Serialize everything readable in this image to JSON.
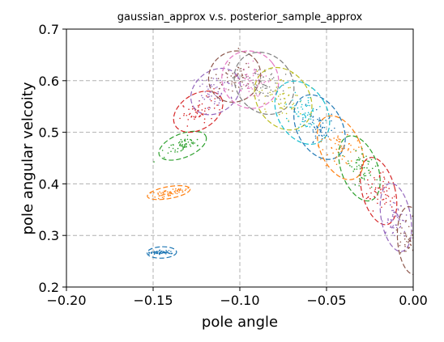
{
  "chart_data": {
    "type": "scatter",
    "title": "gaussian_approx v.s. posterior_sample_approx",
    "xlabel": "pole angle",
    "ylabel": "pole angular velcoity",
    "xlim": [
      -0.2,
      0.0
    ],
    "ylim": [
      0.2,
      0.7
    ],
    "xticks": [
      -0.2,
      -0.15,
      -0.1,
      -0.05,
      0.0
    ],
    "xtick_labels": [
      "−0.20",
      "−0.15",
      "−0.10",
      "−0.05",
      "0.00"
    ],
    "yticks": [
      0.2,
      0.3,
      0.4,
      0.5,
      0.6,
      0.7
    ],
    "ytick_labels": [
      "0.2",
      "0.3",
      "0.4",
      "0.5",
      "0.6",
      "0.7"
    ],
    "grid": true,
    "series": [
      {
        "color": "#1f77b4",
        "center": [
          -0.145,
          0.267
        ],
        "ellipse": {
          "rx": 0.0085,
          "ry": 0.011,
          "angle": -2
        },
        "spread": [
          0.004,
          0.002
        ]
      },
      {
        "color": "#ff7f0e",
        "center": [
          -0.141,
          0.383
        ],
        "ellipse": {
          "rx": 0.0125,
          "ry": 0.0115,
          "angle": -10
        },
        "spread": [
          0.006,
          0.004
        ]
      },
      {
        "color": "#2ca02c",
        "center": [
          -0.133,
          0.474
        ],
        "ellipse": {
          "rx": 0.0145,
          "ry": 0.023,
          "angle": -22
        },
        "spread": [
          0.006,
          0.008
        ]
      },
      {
        "color": "#d62728",
        "center": [
          -0.124,
          0.54
        ],
        "ellipse": {
          "rx": 0.0155,
          "ry": 0.034,
          "angle": -32
        },
        "spread": [
          0.006,
          0.012
        ]
      },
      {
        "color": "#9467bd",
        "center": [
          -0.114,
          0.579
        ],
        "ellipse": {
          "rx": 0.0155,
          "ry": 0.04,
          "angle": -38
        },
        "spread": [
          0.006,
          0.014
        ]
      },
      {
        "color": "#8c564b",
        "center": [
          -0.103,
          0.608
        ],
        "ellipse": {
          "rx": 0.0155,
          "ry": 0.048,
          "angle": -40
        },
        "spread": [
          0.006,
          0.016
        ]
      },
      {
        "color": "#e377c2",
        "center": [
          -0.094,
          0.602
        ],
        "ellipse": {
          "rx": 0.016,
          "ry": 0.057,
          "angle": -38
        },
        "spread": [
          0.006,
          0.018
        ]
      },
      {
        "color": "#7f7f7f",
        "center": [
          -0.086,
          0.595
        ],
        "ellipse": {
          "rx": 0.016,
          "ry": 0.064,
          "angle": -38
        },
        "spread": [
          0.006,
          0.02
        ]
      },
      {
        "color": "#bcbd22",
        "center": [
          -0.075,
          0.565
        ],
        "ellipse": {
          "rx": 0.015,
          "ry": 0.065,
          "angle": -35
        },
        "spread": [
          0.006,
          0.02
        ]
      },
      {
        "color": "#17becf",
        "center": [
          -0.064,
          0.538
        ],
        "ellipse": {
          "rx": 0.014,
          "ry": 0.066,
          "angle": -32
        },
        "spread": [
          0.005,
          0.02
        ]
      },
      {
        "color": "#1f77b4",
        "center": [
          -0.054,
          0.51
        ],
        "ellipse": {
          "rx": 0.013,
          "ry": 0.067,
          "angle": -28
        },
        "spread": [
          0.005,
          0.02
        ]
      },
      {
        "color": "#ff7f0e",
        "center": [
          -0.042,
          0.47
        ],
        "ellipse": {
          "rx": 0.0115,
          "ry": 0.066,
          "angle": -25
        },
        "spread": [
          0.005,
          0.02
        ]
      },
      {
        "color": "#2ca02c",
        "center": [
          -0.031,
          0.43
        ],
        "ellipse": {
          "rx": 0.0105,
          "ry": 0.066,
          "angle": -20
        },
        "spread": [
          0.005,
          0.02
        ]
      },
      {
        "color": "#d62728",
        "center": [
          -0.02,
          0.386
        ],
        "ellipse": {
          "rx": 0.0095,
          "ry": 0.067,
          "angle": -15
        },
        "spread": [
          0.004,
          0.02
        ]
      },
      {
        "color": "#9467bd",
        "center": [
          -0.01,
          0.335
        ],
        "ellipse": {
          "rx": 0.0085,
          "ry": 0.067,
          "angle": -10
        },
        "spread": [
          0.004,
          0.02
        ]
      },
      {
        "color": "#8c564b",
        "center": [
          -0.001,
          0.29
        ],
        "ellipse": {
          "rx": 0.008,
          "ry": 0.066,
          "angle": -5
        },
        "spread": [
          0.004,
          0.02
        ]
      }
    ]
  }
}
